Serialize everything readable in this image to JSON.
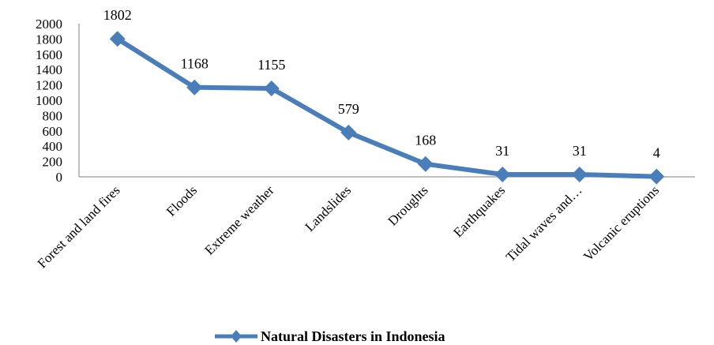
{
  "chart_data": {
    "type": "line",
    "categories": [
      "Forest and land fires",
      "Floods",
      "Extreme weather",
      "Landslides",
      "Droughts",
      "Earthquakes",
      "Tidal waves and…",
      "Volcanic eruptions"
    ],
    "series": [
      {
        "name": "Natural Disasters in Indonesia",
        "values": [
          1802,
          1168,
          1155,
          579,
          168,
          31,
          31,
          4
        ],
        "color": "#4a7ebb"
      }
    ],
    "ylim": [
      0,
      2000
    ],
    "yticks": [
      "0",
      "200",
      "400",
      "600",
      "800",
      "1000",
      "1200",
      "1400",
      "1600",
      "1800",
      "2000"
    ],
    "data_labels": [
      "1802",
      "1168",
      "1155",
      "579",
      "168",
      "31",
      "31",
      "4"
    ],
    "legend_position": "bottom",
    "grid": false
  }
}
